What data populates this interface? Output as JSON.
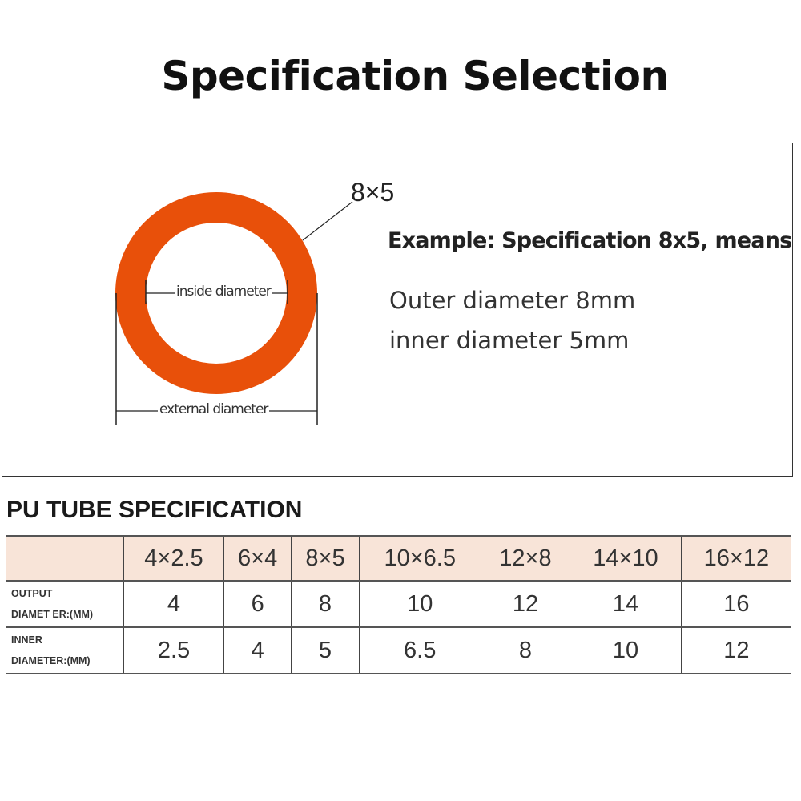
{
  "title": "Specification Selection",
  "diagram": {
    "spec_label": "8×5",
    "inside_label": "inside diameter",
    "external_label": "external diameter",
    "ring_color": "#E8500A",
    "example_heading": "Example: Specification 8x5, means",
    "outer_text": "Outer diameter 8mm",
    "inner_text": "inner diameter 5mm"
  },
  "table": {
    "section_title": "PU TUBE SPECIFICATION",
    "header_color": "#F8E4D8",
    "columns": [
      "4×2.5",
      "6×4",
      "8×5",
      "10×6.5",
      "12×8",
      "14×10",
      "16×12"
    ],
    "rows": [
      {
        "label_line1": "OUTPUT",
        "label_line2": "DIAMET ER:(MM)",
        "values": [
          "4",
          "6",
          "8",
          "10",
          "12",
          "14",
          "16"
        ]
      },
      {
        "label_line1": "INNER",
        "label_line2": "DIAMETER:(MM)",
        "values": [
          "2.5",
          "4",
          "5",
          "6.5",
          "8",
          "10",
          "12"
        ]
      }
    ]
  }
}
